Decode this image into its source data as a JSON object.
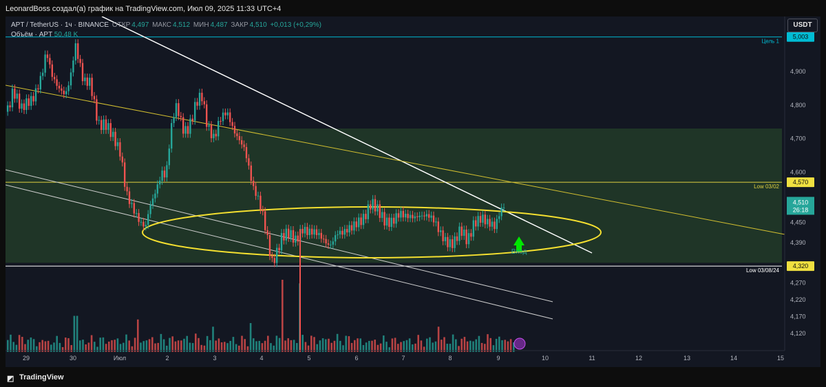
{
  "header": {
    "publisher_text": "LeonardBoss создал(а) график на TradingView.com, Июл 09, 2025 11:33 UTC+4"
  },
  "legend": {
    "symbol": "APT / TetherUS · 1ч · BINANCE",
    "open_label": "ОТКР",
    "open_value": "4,497",
    "high_label": "МАКС",
    "high_value": "4,512",
    "low_label": "МИН",
    "low_value": "4,487",
    "close_label": "ЗАКР",
    "close_value": "4,510",
    "change": "+0,013 (+0,29%)",
    "volume_label": "Объём · APT",
    "volume_value": "50,48 K"
  },
  "currency_button": "USDT",
  "colors": {
    "up": "#26a69a",
    "down": "#ef5350",
    "target": "#00bcd4",
    "zone": "#2e5a2e",
    "ellipse": "#f5e030",
    "entry": "#00e600",
    "trend": "#ffffff"
  },
  "chart_data": {
    "type": "candlestick",
    "symbol": "APT / TetherUS",
    "timeframe": "1ч",
    "exchange": "BINANCE",
    "x_ticks": [
      "29",
      "30",
      "Июл",
      "2",
      "3",
      "4",
      "5",
      "6",
      "7",
      "8",
      "9",
      "10",
      "11",
      "12",
      "13",
      "14",
      "15"
    ],
    "y_ticks": [
      "4,900",
      "4,800",
      "4,700",
      "4,600",
      "4,450",
      "4,390",
      "4,270",
      "4,220",
      "4,170",
      "4,120"
    ],
    "price_labels": [
      {
        "value": "5,003",
        "text": "Цель 1"
      },
      {
        "value": "4,570",
        "text": "Low 03/02"
      },
      {
        "value": "4,320",
        "text": "Low 03/08/24"
      }
    ],
    "current_price": "4,510",
    "countdown": "26:18",
    "zone": [
      4.33,
      4.73
    ],
    "price_path": [
      [
        0,
        4.78
      ],
      [
        10,
        4.85
      ],
      [
        22,
        4.78
      ],
      [
        38,
        4.82
      ],
      [
        52,
        4.9
      ],
      [
        58,
        4.96
      ],
      [
        66,
        4.88
      ],
      [
        74,
        4.85
      ],
      [
        86,
        4.84
      ],
      [
        94,
        4.9
      ],
      [
        100,
        4.98
      ],
      [
        112,
        4.86
      ],
      [
        122,
        4.87
      ],
      [
        134,
        4.75
      ],
      [
        144,
        4.74
      ],
      [
        154,
        4.7
      ],
      [
        166,
        4.66
      ],
      [
        174,
        4.55
      ],
      [
        186,
        4.48
      ],
      [
        194,
        4.44
      ],
      [
        202,
        4.43
      ],
      [
        208,
        4.5
      ],
      [
        218,
        4.56
      ],
      [
        226,
        4.6
      ],
      [
        232,
        4.58
      ],
      [
        236,
        4.66
      ],
      [
        242,
        4.76
      ],
      [
        248,
        4.8
      ],
      [
        256,
        4.74
      ],
      [
        262,
        4.73
      ],
      [
        268,
        4.75
      ],
      [
        276,
        4.8
      ],
      [
        284,
        4.82
      ],
      [
        292,
        4.74
      ],
      [
        302,
        4.71
      ],
      [
        310,
        4.76
      ],
      [
        320,
        4.77
      ],
      [
        330,
        4.72
      ],
      [
        340,
        4.7
      ],
      [
        346,
        4.68
      ],
      [
        352,
        4.62
      ],
      [
        358,
        4.55
      ],
      [
        366,
        4.51
      ],
      [
        374,
        4.46
      ],
      [
        380,
        4.4
      ],
      [
        386,
        4.34
      ],
      [
        392,
        4.36
      ],
      [
        400,
        4.4
      ],
      [
        410,
        4.41
      ],
      [
        420,
        4.4
      ],
      [
        430,
        4.44
      ],
      [
        440,
        4.42
      ],
      [
        450,
        4.41
      ],
      [
        460,
        4.4
      ],
      [
        470,
        4.39
      ],
      [
        480,
        4.42
      ],
      [
        490,
        4.41
      ],
      [
        500,
        4.43
      ],
      [
        510,
        4.46
      ],
      [
        520,
        4.47
      ],
      [
        530,
        4.5
      ],
      [
        540,
        4.48
      ],
      [
        550,
        4.46
      ],
      [
        560,
        4.46
      ],
      [
        570,
        4.47
      ],
      [
        580,
        4.46
      ],
      [
        590,
        4.47
      ],
      [
        600,
        4.48
      ],
      [
        610,
        4.47
      ],
      [
        620,
        4.45
      ],
      [
        630,
        4.42
      ],
      [
        640,
        4.4
      ],
      [
        650,
        4.39
      ],
      [
        660,
        4.42
      ],
      [
        670,
        4.39
      ],
      [
        680,
        4.46
      ],
      [
        690,
        4.47
      ],
      [
        700,
        4.44
      ],
      [
        710,
        4.43
      ],
      [
        715,
        4.47
      ],
      [
        720,
        4.5
      ],
      [
        724,
        4.51
      ]
    ],
    "volume_spikes": [
      [
        400,
        1.0
      ],
      [
        425,
        0.95
      ],
      [
        100,
        0.5
      ],
      [
        190,
        0.45
      ],
      [
        300,
        0.35
      ],
      [
        355,
        0.4
      ],
      [
        627,
        0.35
      ]
    ],
    "annotation": {
      "text": "Вход"
    }
  },
  "footer": {
    "brand": "TradingView"
  }
}
